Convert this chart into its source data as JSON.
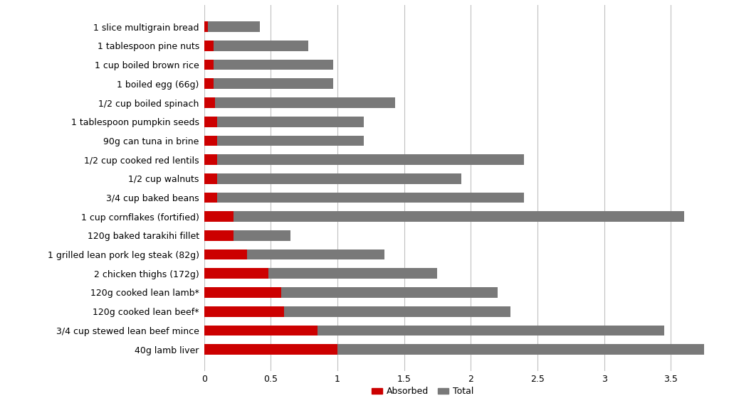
{
  "categories": [
    "1 slice multigrain bread",
    "1 tablespoon pine nuts",
    "1 cup boiled brown rice",
    "1 boiled egg (66g)",
    "1/2 cup boiled spinach",
    "1 tablespoon pumpkin seeds",
    "90g can tuna in brine",
    "1/2 cup cooked red lentils",
    "1/2 cup walnuts",
    "3/4 cup baked beans",
    "1 cup cornflakes (fortified)",
    "120g baked tarakihi fillet",
    "1 grilled lean pork leg steak (82g)",
    "2 chicken thighs (172g)",
    "120g cooked lean lamb*",
    "120g cooked lean beef*",
    "3/4 cup stewed lean beef mince",
    "40g lamb liver"
  ],
  "absorbed": [
    0.03,
    0.07,
    0.07,
    0.07,
    0.08,
    0.1,
    0.1,
    0.1,
    0.1,
    0.1,
    0.22,
    0.22,
    0.32,
    0.48,
    0.58,
    0.6,
    0.85,
    1.0
  ],
  "total": [
    0.42,
    0.78,
    0.97,
    0.97,
    1.43,
    1.2,
    1.2,
    2.4,
    1.93,
    2.4,
    3.6,
    0.65,
    1.35,
    1.75,
    2.2,
    2.3,
    3.45,
    3.75
  ],
  "absorbed_color": "#cc0000",
  "total_color": "#797979",
  "background_color": "#ffffff",
  "xlim": [
    0,
    3.9
  ],
  "xticks": [
    0,
    0.5,
    1.0,
    1.5,
    2.0,
    2.5,
    3.0,
    3.5
  ],
  "xtick_labels": [
    "0",
    "0.5",
    "1",
    "1.5",
    "2",
    "2.5",
    "3",
    "3.5"
  ],
  "legend_absorbed": "Absorbed",
  "legend_total": "Total",
  "bar_height": 0.55,
  "figsize": [
    10.24,
    5.74
  ],
  "dpi": 100
}
